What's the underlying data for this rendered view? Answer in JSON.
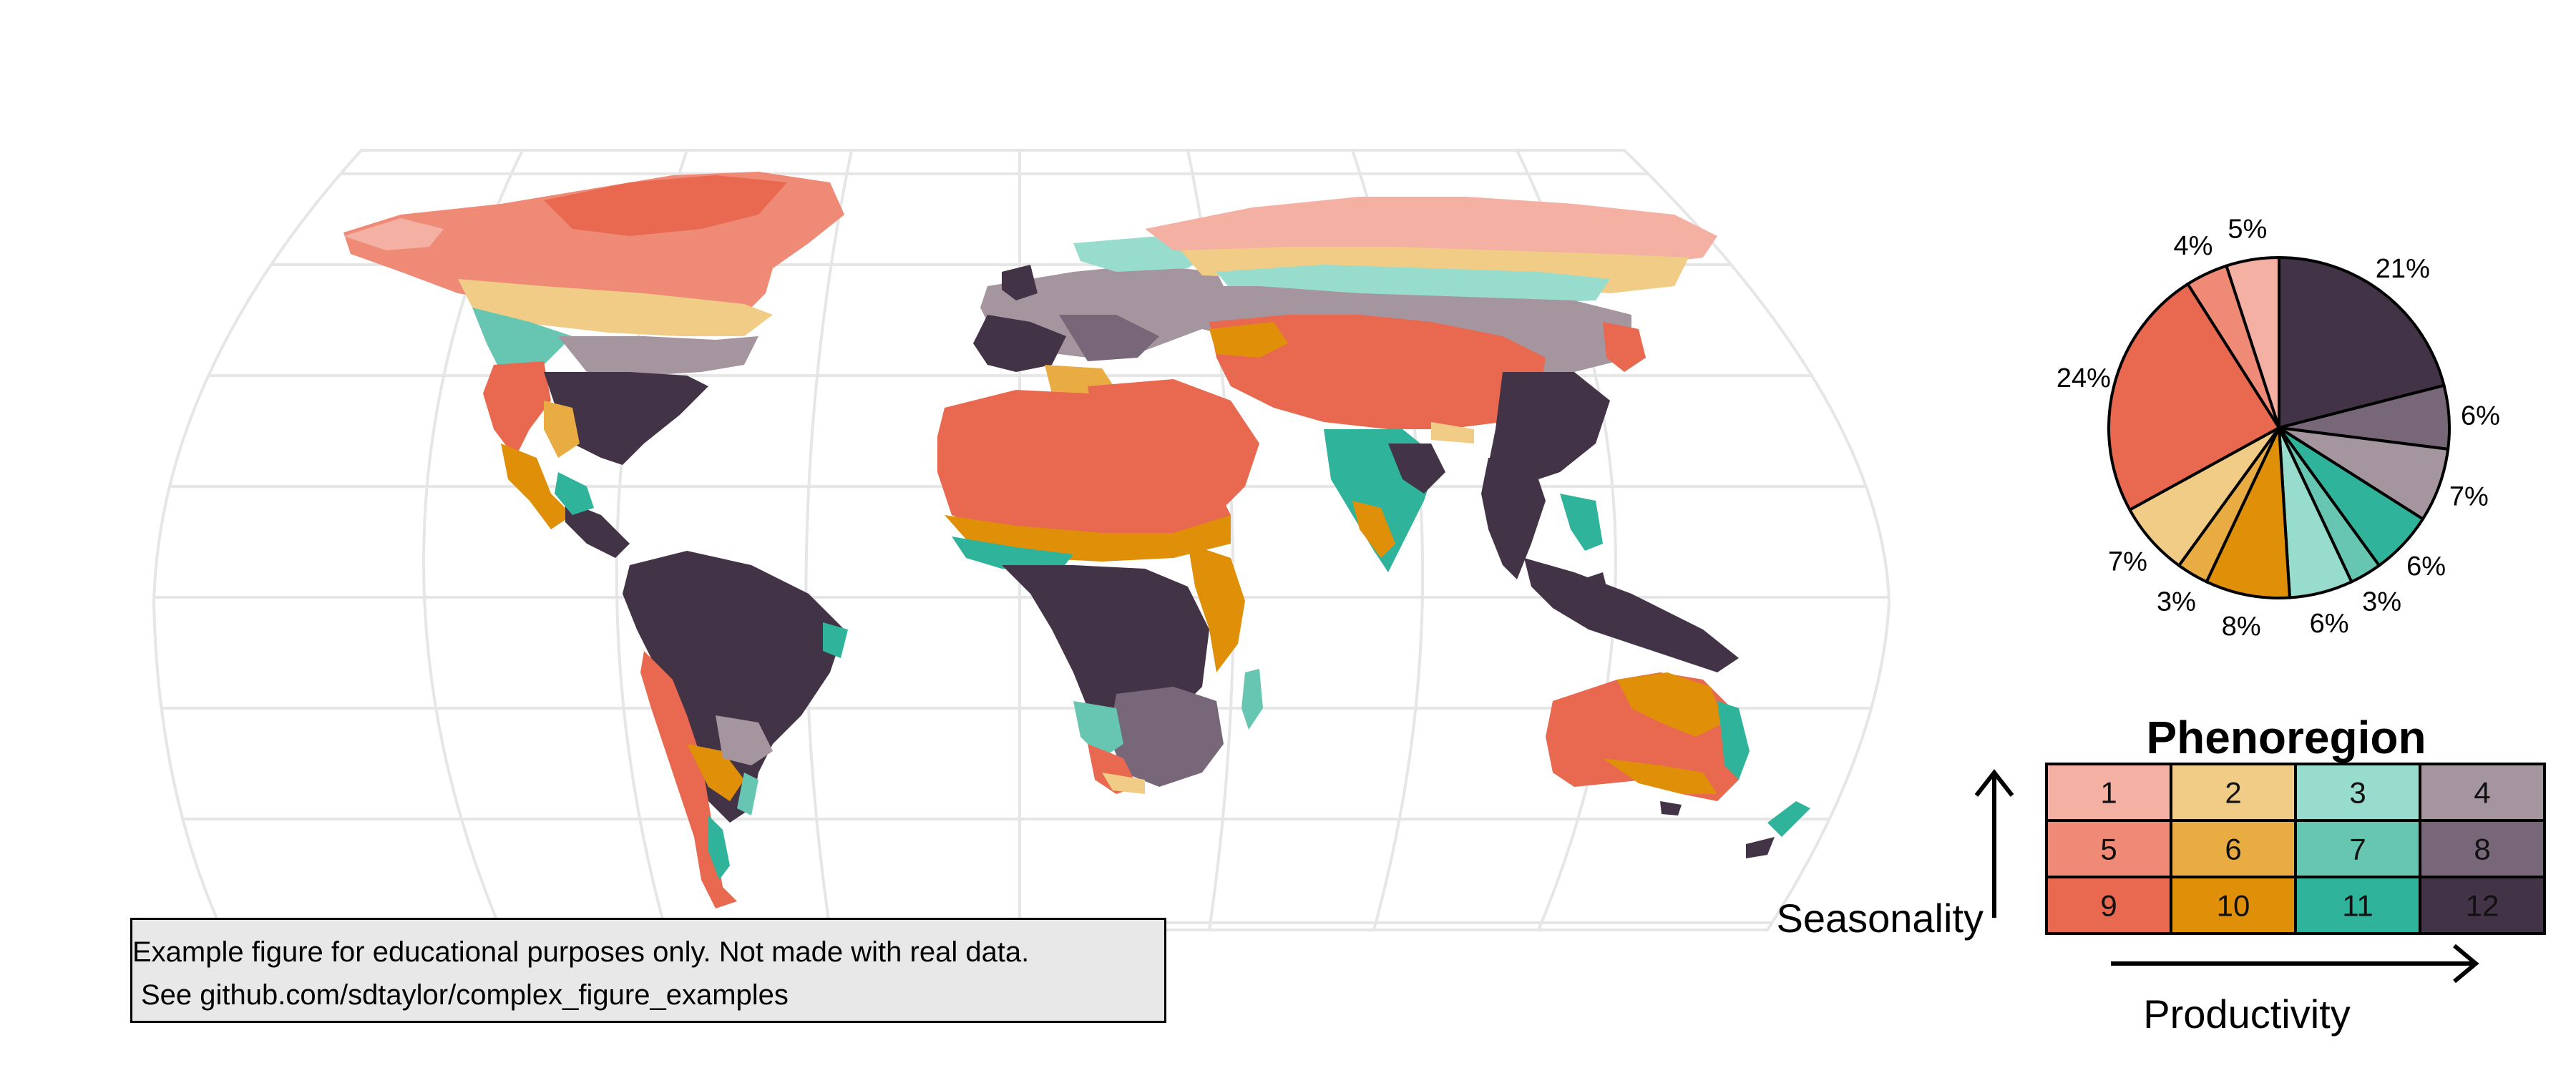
{
  "legend": {
    "title": "Phenoregion",
    "x_label": "Productivity",
    "y_label": "Seasonality",
    "classes": [
      {
        "id": "1",
        "color": "#f4b0a3"
      },
      {
        "id": "2",
        "color": "#f0cc86"
      },
      {
        "id": "3",
        "color": "#97dccc"
      },
      {
        "id": "4",
        "color": "#a5959f"
      },
      {
        "id": "5",
        "color": "#ef8a77"
      },
      {
        "id": "6",
        "color": "#e8ac42"
      },
      {
        "id": "7",
        "color": "#66c6b1"
      },
      {
        "id": "8",
        "color": "#776779"
      },
      {
        "id": "9",
        "color": "#e8694f"
      },
      {
        "id": "10",
        "color": "#df9008"
      },
      {
        "id": "11",
        "color": "#2fb39a"
      },
      {
        "id": "12",
        "color": "#433347"
      }
    ]
  },
  "pie": {
    "slices": [
      {
        "region": "12",
        "percent": 21,
        "label": "21%"
      },
      {
        "region": "8",
        "percent": 6,
        "label": "6%"
      },
      {
        "region": "4",
        "percent": 7,
        "label": "7%"
      },
      {
        "region": "11",
        "percent": 6,
        "label": "6%"
      },
      {
        "region": "7",
        "percent": 3,
        "label": "3%"
      },
      {
        "region": "3",
        "percent": 6,
        "label": "6%"
      },
      {
        "region": "10",
        "percent": 8,
        "label": "8%"
      },
      {
        "region": "6",
        "percent": 3,
        "label": "3%"
      },
      {
        "region": "2",
        "percent": 7,
        "label": "7%"
      },
      {
        "region": "9",
        "percent": 24,
        "label": "24%"
      },
      {
        "region": "5",
        "percent": 4,
        "label": "4%"
      },
      {
        "region": "1",
        "percent": 5,
        "label": "5%"
      }
    ]
  },
  "map": {
    "projection": "robinson",
    "graticule": true
  },
  "note": {
    "line1": "Example figure for educational purposes only. Not made with real data.",
    "line2": "See github.com/sdtaylor/complex_figure_examples"
  }
}
